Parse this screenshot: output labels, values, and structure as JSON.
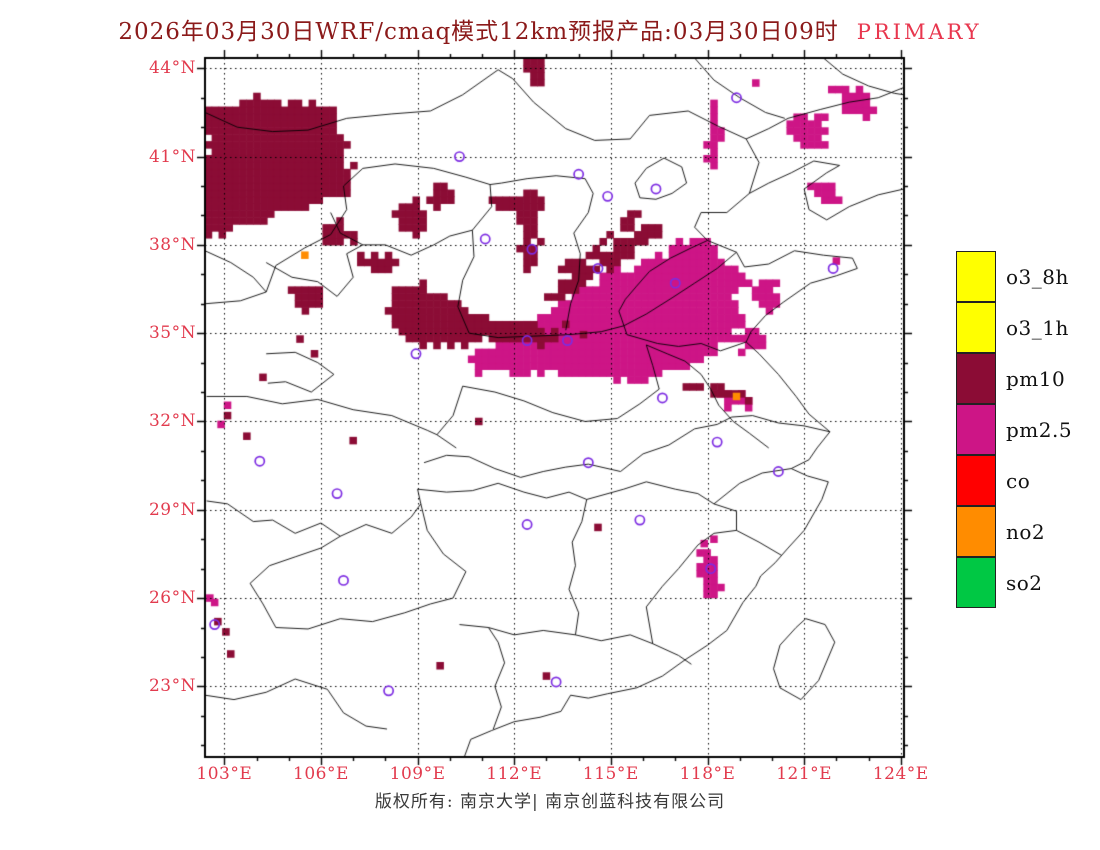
{
  "title": {
    "main": "2026年03月30日WRF/cmaq模式12km预报产品:03月30日09时",
    "highlight": "PRIMARY"
  },
  "footer": {
    "copyright": "版权所有: 南京大学| 南京创蓝科技有限公司"
  },
  "colors": {
    "title": "#8b1a1a",
    "highlight": "#e8364e",
    "axis_labels": "#e23b4e",
    "station_marker": "#7d2ce2",
    "grid": "#000000",
    "boundary": "#000000",
    "frame": "#000000"
  },
  "axes": {
    "lat_ticks": [
      {
        "label": "44°N",
        "value": 44
      },
      {
        "label": "41°N",
        "value": 41
      },
      {
        "label": "38°N",
        "value": 38
      },
      {
        "label": "35°N",
        "value": 35
      },
      {
        "label": "32°N",
        "value": 32
      },
      {
        "label": "29°N",
        "value": 29
      },
      {
        "label": "26°N",
        "value": 26
      },
      {
        "label": "23°N",
        "value": 23
      }
    ],
    "lon_ticks": [
      {
        "label": "103°E",
        "value": 103
      },
      {
        "label": "106°E",
        "value": 106
      },
      {
        "label": "109°E",
        "value": 109
      },
      {
        "label": "112°E",
        "value": 112
      },
      {
        "label": "115°E",
        "value": 115
      },
      {
        "label": "118°E",
        "value": 118
      },
      {
        "label": "121°E",
        "value": 121
      },
      {
        "label": "124°E",
        "value": 124
      }
    ]
  },
  "legend": {
    "items": [
      {
        "label": "o3_8h",
        "color": "#ffff00"
      },
      {
        "label": "o3_1h",
        "color": "#ffff00"
      },
      {
        "label": "pm10",
        "color": "#8b0c35"
      },
      {
        "label": "pm2.5",
        "color": "#cd1586"
      },
      {
        "label": "co",
        "color": "#ff0000"
      },
      {
        "label": "no2",
        "color": "#ff8c00"
      },
      {
        "label": "so2",
        "color": "#00c844"
      }
    ]
  },
  "chart_data": {
    "type": "map-raster",
    "extent": {
      "lon_min": 102.4,
      "lon_max": 124.1,
      "lat_min": 20.6,
      "lat_max": 44.35
    },
    "graticule_deg": 3,
    "layers": [
      {
        "pollutant": "pm2.5",
        "regions": [
          [
            [
              110.5,
              34.1
            ],
            [
              111.2,
              34.55
            ],
            [
              112.0,
              35.0
            ],
            [
              112.7,
              35.5
            ],
            [
              113.4,
              36.0
            ],
            [
              114.1,
              36.55
            ],
            [
              114.9,
              37.0
            ],
            [
              115.8,
              37.3
            ],
            [
              116.5,
              37.6
            ],
            [
              117.0,
              38.0
            ],
            [
              117.6,
              38.35
            ],
            [
              118.1,
              38.1
            ],
            [
              118.5,
              37.6
            ],
            [
              118.9,
              37.2
            ],
            [
              119.15,
              36.7
            ],
            [
              118.85,
              36.2
            ],
            [
              119.15,
              35.6
            ],
            [
              118.8,
              35.0
            ],
            [
              118.25,
              34.4
            ],
            [
              117.5,
              34.0
            ],
            [
              116.6,
              33.6
            ],
            [
              115.6,
              33.4
            ],
            [
              114.7,
              33.55
            ],
            [
              113.9,
              33.5
            ],
            [
              113.1,
              33.7
            ],
            [
              112.3,
              33.5
            ],
            [
              111.5,
              33.75
            ],
            [
              110.8,
              33.7
            ]
          ],
          [
            [
              119.4,
              36.9
            ],
            [
              120.0,
              36.85
            ],
            [
              120.35,
              36.3
            ],
            [
              120.0,
              35.75
            ],
            [
              119.5,
              35.85
            ],
            [
              119.3,
              36.35
            ]
          ],
          [
            [
              119.0,
              35.2
            ],
            [
              119.55,
              35.1
            ],
            [
              119.75,
              34.6
            ],
            [
              119.3,
              34.3
            ],
            [
              118.95,
              34.65
            ]
          ],
          [
            [
              120.6,
              42.4
            ],
            [
              121.4,
              42.45
            ],
            [
              121.85,
              41.9
            ],
            [
              121.5,
              41.3
            ],
            [
              120.9,
              41.4
            ],
            [
              120.5,
              41.9
            ]
          ],
          [
            [
              121.8,
              43.25
            ],
            [
              122.5,
              43.35
            ],
            [
              123.15,
              43.0
            ],
            [
              123.35,
              42.5
            ],
            [
              122.8,
              42.3
            ],
            [
              122.2,
              42.7
            ]
          ],
          [
            [
              121.45,
              40.25
            ],
            [
              122.0,
              40.1
            ],
            [
              122.1,
              39.5
            ],
            [
              121.6,
              39.3
            ],
            [
              121.25,
              39.8
            ]
          ],
          [
            [
              117.9,
              42.95
            ],
            [
              118.35,
              42.85
            ],
            [
              118.45,
              41.6
            ],
            [
              118.3,
              40.55
            ],
            [
              117.95,
              40.65
            ],
            [
              118.1,
              41.7
            ]
          ],
          [
            [
              117.7,
              27.6
            ],
            [
              118.25,
              27.5
            ],
            [
              118.45,
              26.9
            ],
            [
              118.3,
              26.15
            ],
            [
              117.9,
              26.1
            ],
            [
              117.75,
              26.85
            ]
          ],
          [
            [
              118.3,
              33.05
            ],
            [
              119.15,
              32.9
            ],
            [
              119.5,
              32.6
            ],
            [
              119.0,
              32.45
            ],
            [
              118.4,
              32.7
            ]
          ]
        ],
        "cells": [
          [
            103.1,
            32.55
          ],
          [
            102.9,
            31.9
          ],
          [
            102.55,
            26.0
          ],
          [
            102.7,
            25.85
          ],
          [
            117.9,
            27.85
          ],
          [
            118.2,
            28.0
          ],
          [
            122.0,
            37.45
          ],
          [
            119.5,
            43.5
          ]
        ]
      },
      {
        "pollutant": "pm10",
        "regions": [
          [
            [
              102.4,
              42.7
            ],
            [
              103.3,
              42.85
            ],
            [
              104.2,
              43.0
            ],
            [
              105.0,
              42.9
            ],
            [
              105.9,
              42.75
            ],
            [
              106.7,
              42.55
            ],
            [
              106.3,
              42.1
            ],
            [
              106.9,
              41.6
            ],
            [
              106.5,
              41.1
            ],
            [
              107.1,
              40.6
            ],
            [
              106.7,
              40.1
            ],
            [
              107.2,
              39.7
            ],
            [
              106.3,
              39.5
            ],
            [
              105.4,
              39.2
            ],
            [
              104.5,
              39.0
            ],
            [
              103.6,
              38.6
            ],
            [
              102.9,
              38.4
            ],
            [
              102.4,
              38.35
            ]
          ],
          [
            [
              108.2,
              39.35
            ],
            [
              109.0,
              39.45
            ],
            [
              109.45,
              38.9
            ],
            [
              109.0,
              38.4
            ],
            [
              108.4,
              38.5
            ]
          ],
          [
            [
              112.1,
              39.85
            ],
            [
              112.65,
              39.9
            ],
            [
              112.9,
              39.2
            ],
            [
              112.6,
              38.4
            ],
            [
              112.9,
              37.7
            ],
            [
              112.5,
              37.1
            ],
            [
              112.1,
              37.6
            ],
            [
              112.35,
              38.5
            ],
            [
              111.9,
              39.2
            ]
          ],
          [
            [
              113.25,
              36.0
            ],
            [
              114.0,
              36.5
            ],
            [
              114.8,
              37.1
            ],
            [
              115.6,
              37.7
            ],
            [
              116.3,
              38.3
            ],
            [
              116.65,
              38.65
            ],
            [
              116.2,
              38.75
            ],
            [
              115.4,
              38.1
            ],
            [
              114.6,
              37.5
            ],
            [
              113.8,
              36.9
            ],
            [
              113.05,
              36.3
            ]
          ],
          [
            [
              113.7,
              36.95
            ],
            [
              114.4,
              37.55
            ],
            [
              115.2,
              38.25
            ],
            [
              115.8,
              38.85
            ],
            [
              116.05,
              39.25
            ],
            [
              115.65,
              39.1
            ],
            [
              115.0,
              38.5
            ],
            [
              114.2,
              37.8
            ],
            [
              113.5,
              37.25
            ]
          ],
          [
            [
              108.3,
              36.45
            ],
            [
              109.2,
              36.6
            ],
            [
              110.0,
              36.3
            ],
            [
              110.45,
              35.8
            ],
            [
              111.1,
              35.5
            ],
            [
              111.9,
              35.3
            ],
            [
              112.6,
              35.2
            ],
            [
              113.25,
              35.05
            ],
            [
              113.05,
              34.6
            ],
            [
              112.2,
              34.7
            ],
            [
              111.3,
              34.8
            ],
            [
              110.5,
              34.65
            ],
            [
              109.8,
              34.5
            ],
            [
              109.0,
              34.6
            ],
            [
              108.4,
              35.0
            ],
            [
              108.05,
              35.7
            ]
          ],
          [
            [
              117.3,
              33.35
            ],
            [
              118.2,
              33.2
            ],
            [
              119.0,
              33.0
            ],
            [
              119.55,
              32.8
            ],
            [
              119.2,
              32.6
            ],
            [
              118.4,
              32.85
            ],
            [
              117.6,
              33.05
            ],
            [
              117.15,
              33.15
            ]
          ],
          [
            [
              112.25,
              44.3
            ],
            [
              112.85,
              44.3
            ],
            [
              112.95,
              43.5
            ],
            [
              112.45,
              43.4
            ]
          ],
          [
            [
              109.4,
              40.15
            ],
            [
              110.05,
              40.1
            ],
            [
              110.2,
              39.5
            ],
            [
              109.7,
              39.3
            ],
            [
              109.3,
              39.6
            ]
          ],
          [
            [
              111.3,
              39.65
            ],
            [
              111.85,
              39.7
            ],
            [
              111.95,
              39.2
            ],
            [
              111.4,
              39.1
            ]
          ],
          [
            [
              106.05,
              38.85
            ],
            [
              106.8,
              38.8
            ],
            [
              107.0,
              38.2
            ],
            [
              106.4,
              38.0
            ],
            [
              106.0,
              38.3
            ]
          ],
          [
            [
              107.3,
              37.7
            ],
            [
              108.2,
              37.7
            ],
            [
              108.45,
              37.2
            ],
            [
              107.7,
              37.0
            ],
            [
              107.2,
              37.25
            ]
          ],
          [
            [
              105.2,
              36.6
            ],
            [
              105.9,
              36.6
            ],
            [
              106.0,
              36.0
            ],
            [
              105.5,
              35.7
            ],
            [
              105.1,
              36.05
            ]
          ]
        ],
        "cells": [
          [
            105.35,
            34.8
          ],
          [
            104.2,
            33.5
          ],
          [
            103.1,
            32.2
          ],
          [
            103.7,
            31.5
          ],
          [
            107.0,
            31.35
          ],
          [
            103.2,
            24.1
          ],
          [
            102.8,
            25.2
          ],
          [
            103.05,
            24.85
          ],
          [
            109.7,
            23.7
          ],
          [
            113.0,
            23.35
          ],
          [
            114.6,
            28.4
          ],
          [
            113.6,
            35.3
          ],
          [
            114.15,
            34.95
          ],
          [
            105.8,
            34.3
          ],
          [
            110.9,
            32.0
          ]
        ]
      },
      {
        "pollutant": "no2",
        "regions": [],
        "cells": [
          [
            105.5,
            37.65
          ],
          [
            118.9,
            32.85
          ]
        ]
      }
    ],
    "stations": [
      [
        118.9,
        43.0
      ],
      [
        110.3,
        41.0
      ],
      [
        114.0,
        40.4
      ],
      [
        114.9,
        39.65
      ],
      [
        116.4,
        39.9
      ],
      [
        111.1,
        38.2
      ],
      [
        112.55,
        37.85
      ],
      [
        114.6,
        37.2
      ],
      [
        121.9,
        37.2
      ],
      [
        117.0,
        36.7
      ],
      [
        112.4,
        34.75
      ],
      [
        113.65,
        34.75
      ],
      [
        108.95,
        34.3
      ],
      [
        116.6,
        32.8
      ],
      [
        118.3,
        31.3
      ],
      [
        104.1,
        30.65
      ],
      [
        106.5,
        29.55
      ],
      [
        114.3,
        30.6
      ],
      [
        112.4,
        28.5
      ],
      [
        115.9,
        28.65
      ],
      [
        120.2,
        30.3
      ],
      [
        118.1,
        27.0
      ],
      [
        106.7,
        26.6
      ],
      [
        102.7,
        25.1
      ],
      [
        108.1,
        22.85
      ],
      [
        113.3,
        23.15
      ]
    ]
  }
}
